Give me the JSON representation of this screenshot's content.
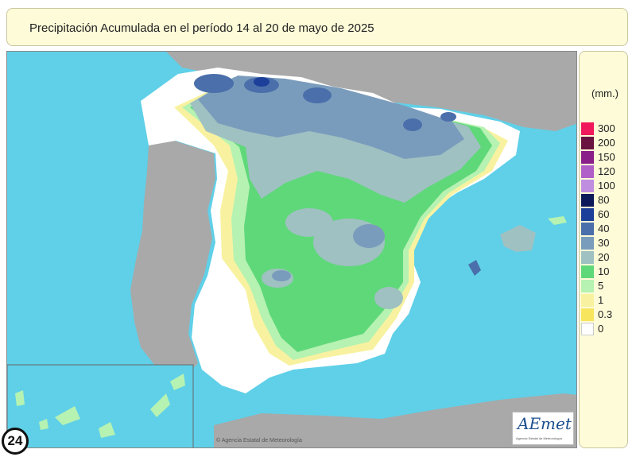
{
  "map": {
    "title": "Precipitación Acumulada en el período 14 al 20 de mayo de 2025",
    "copyright": "© Agencia Estatal de Meteorología",
    "logo": {
      "text": "AEmet",
      "subtext": "Agencia Estatal de Meteorología"
    }
  },
  "legend": {
    "unit": "(mm.)",
    "items": [
      {
        "label": "300",
        "color": "#f0195c"
      },
      {
        "label": "200",
        "color": "#6a1240"
      },
      {
        "label": "150",
        "color": "#8a1f8a"
      },
      {
        "label": "120",
        "color": "#b05ec8"
      },
      {
        "label": "100",
        "color": "#c08ee0"
      },
      {
        "label": "80",
        "color": "#0d1a5a"
      },
      {
        "label": "60",
        "color": "#1c3f9a"
      },
      {
        "label": "40",
        "color": "#4a6faa"
      },
      {
        "label": "30",
        "color": "#7a9cbc"
      },
      {
        "label": "20",
        "color": "#9fc1c2"
      },
      {
        "label": "10",
        "color": "#5fd87a"
      },
      {
        "label": "5",
        "color": "#b6f2b2"
      },
      {
        "label": "1",
        "color": "#f8f2a0"
      },
      {
        "label": "0.3",
        "color": "#f8e55e"
      },
      {
        "label": "0",
        "color": "#ffffff"
      }
    ]
  },
  "badge": {
    "text": "24"
  }
}
